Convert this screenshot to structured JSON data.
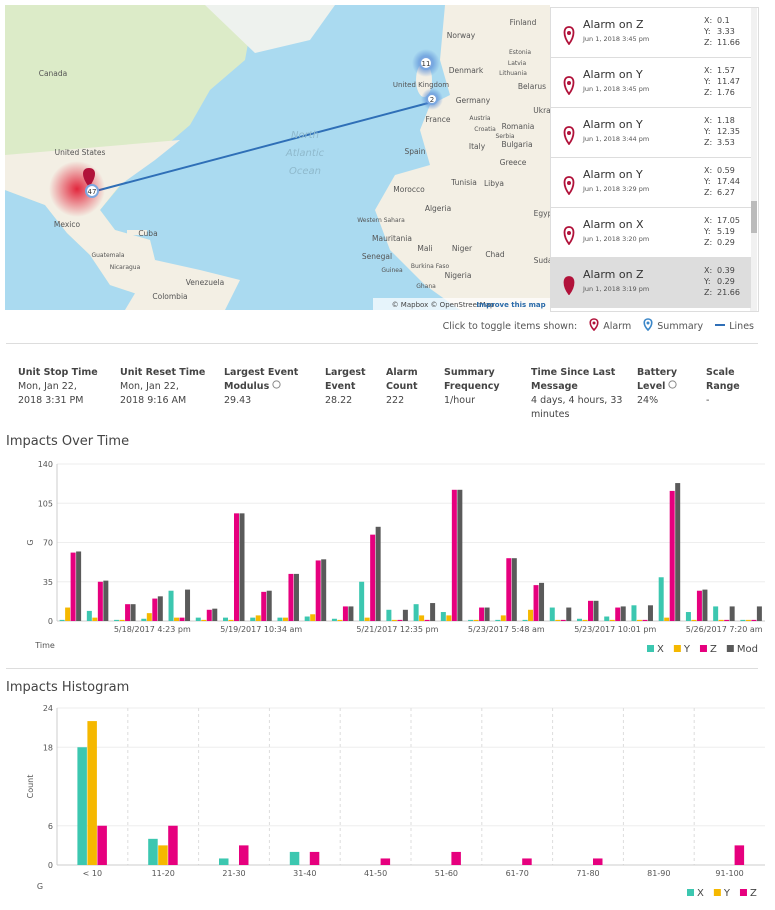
{
  "map": {
    "labels": [
      "Canada",
      "United States",
      "Mexico",
      "Cuba",
      "Guatemala",
      "Nicaragua",
      "Venezuela",
      "Colombia",
      "North",
      "Atlantic",
      "Ocean",
      "Norway",
      "Finland",
      "Estonia",
      "Latvia",
      "Lithuania",
      "Belarus",
      "Denmark",
      "United Kingdom",
      "Germany",
      "Ukra",
      "France",
      "Austria",
      "Croatia",
      "Serbia",
      "Romania",
      "Bulgaria",
      "Italy",
      "Spain",
      "Greece",
      "Tunisia",
      "Morocco",
      "Algeria",
      "Libya",
      "Egyp",
      "Western Sahara",
      "Mauritania",
      "Mali",
      "Niger",
      "Chad",
      "Suda",
      "Senegal",
      "Guinea",
      "Burkina Faso",
      "Nigeria",
      "Ghana"
    ],
    "clusters": [
      "47",
      "11",
      "2"
    ],
    "attribution": "© Mapbox © OpenStreetMap",
    "improve": "Improve this map"
  },
  "alarm_axes": [
    "X:",
    "Y:",
    "Z:"
  ],
  "alarms": [
    {
      "title": "Alarm on Z",
      "date": "Jun 1, 2018 3:45 pm",
      "x": "0.1",
      "y": "3.33",
      "z": "11.66"
    },
    {
      "title": "Alarm on Y",
      "date": "Jun 1, 2018 3:45 pm",
      "x": "1.57",
      "y": "11.47",
      "z": "1.76"
    },
    {
      "title": "Alarm on Y",
      "date": "Jun 1, 2018 3:44 pm",
      "x": "1.18",
      "y": "12.35",
      "z": "3.53"
    },
    {
      "title": "Alarm on Y",
      "date": "Jun 1, 2018 3:29 pm",
      "x": "0.59",
      "y": "17.44",
      "z": "6.27"
    },
    {
      "title": "Alarm on X",
      "date": "Jun 1, 2018 3:20 pm",
      "x": "17.05",
      "y": "5.19",
      "z": "0.29"
    },
    {
      "title": "Alarm on Z",
      "date": "Jun 1, 2018 3:19 pm",
      "x": "0.39",
      "y": "0.29",
      "z": "21.66"
    }
  ],
  "toggle": {
    "prompt": "Click to toggle items shown:",
    "alarm": "Alarm",
    "summary": "Summary",
    "lines": "Lines"
  },
  "stats": [
    {
      "label": "Unit Stop Time",
      "value": "Mon, Jan 22, 2018 3:31 PM"
    },
    {
      "label": "Unit Reset Time",
      "value": "Mon, Jan 22, 2018 9:16 AM"
    },
    {
      "label": "Largest Event Modulus",
      "value": "29.43"
    },
    {
      "label": "Largest Event",
      "value": "28.22"
    },
    {
      "label": "Alarm Count",
      "value": "222"
    },
    {
      "label": "Summary Frequency",
      "value": "1/hour"
    },
    {
      "label": "Time Since Last Message",
      "value": "4 days, 4 hours, 33 minutes"
    },
    {
      "label": "Battery Level",
      "value": "24%"
    },
    {
      "label": "Scale Range",
      "value": "-"
    }
  ],
  "chart_data": [
    {
      "type": "bar",
      "title": "Impacts Over Time",
      "y_label": "G",
      "x_label": "Time",
      "categories": [
        null,
        null,
        null,
        "5/18/2017 4:23 pm",
        null,
        null,
        null,
        "5/19/2017 10:34 am",
        null,
        null,
        null,
        null,
        "5/21/2017 12:35 pm",
        null,
        null,
        null,
        "5/23/2017 5:48 am",
        null,
        null,
        null,
        "5/23/2017 10:01 pm",
        null,
        null,
        null,
        "5/26/2017 7:20 am",
        null
      ],
      "series": [
        {
          "name": "X",
          "color": "#3cc7b0",
          "values": [
            1,
            9,
            1,
            2,
            27,
            3,
            3,
            3,
            3,
            4,
            2,
            35,
            10,
            15,
            8,
            1,
            1,
            1,
            12,
            2,
            4,
            14,
            39,
            8,
            13,
            1
          ]
        },
        {
          "name": "Y",
          "color": "#f5b800",
          "values": [
            12,
            3,
            1,
            7,
            3,
            1,
            1,
            5,
            3,
            6,
            1,
            3,
            1,
            5,
            5,
            1,
            5,
            10,
            1,
            1,
            1,
            1,
            3,
            1,
            1,
            1
          ]
        },
        {
          "name": "Z",
          "color": "#e6007e",
          "values": [
            61,
            35,
            15,
            20,
            3,
            10,
            96,
            26,
            42,
            54,
            13,
            77,
            1,
            1,
            117,
            12,
            56,
            32,
            1,
            18,
            12,
            1,
            116,
            27,
            1,
            1
          ]
        },
        {
          "name": "Mod",
          "color": "#5a5a5a",
          "values": [
            62,
            36,
            15,
            22,
            28,
            11,
            96,
            27,
            42,
            55,
            13,
            84,
            10,
            16,
            117,
            12,
            56,
            34,
            12,
            18,
            13,
            14,
            123,
            28,
            13,
            13
          ]
        }
      ],
      "ylim": [
        0,
        140
      ],
      "yticks": [
        0,
        35,
        70,
        105,
        140
      ],
      "grid": true
    },
    {
      "type": "histogram",
      "title": "Impacts Histogram",
      "y_label": "Count",
      "x_label": "G",
      "categories": [
        "< 10",
        "11-20",
        "21-30",
        "31-40",
        "41-50",
        "51-60",
        "61-70",
        "71-80",
        "81-90",
        "91-100"
      ],
      "series": [
        {
          "name": "X",
          "color": "#3cc7b0",
          "values": [
            18,
            4,
            1,
            2,
            0,
            0,
            0,
            0,
            0,
            0
          ]
        },
        {
          "name": "Y",
          "color": "#f5b800",
          "values": [
            22,
            3,
            0,
            0,
            0,
            0,
            0,
            0,
            0,
            0
          ]
        },
        {
          "name": "Z",
          "color": "#e6007e",
          "values": [
            6,
            6,
            3,
            2,
            1,
            2,
            1,
            1,
            0,
            3
          ]
        }
      ],
      "ylim": [
        0,
        24
      ],
      "yticks": [
        0,
        6,
        18,
        24
      ],
      "grid": true
    }
  ]
}
